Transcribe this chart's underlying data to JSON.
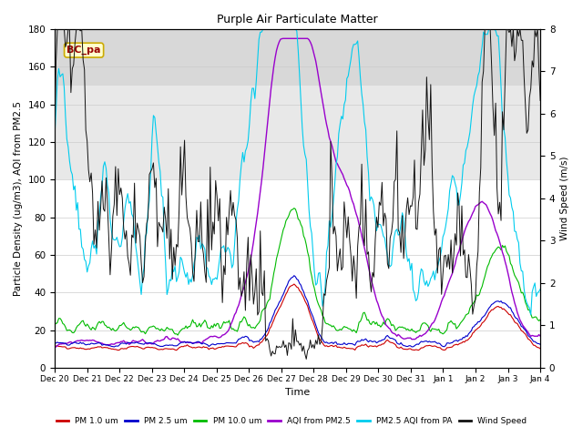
{
  "title": "Purple Air Particulate Matter",
  "xlabel": "Time",
  "ylabel_left": "Particle Density (ug/m3), AQI from PM2.5",
  "ylabel_right": "Wind Speed (m/s)",
  "annotation": "BC_pa",
  "ylim_left": [
    0,
    180
  ],
  "ylim_right": [
    0.0,
    8.0
  ],
  "yticks_left": [
    0,
    20,
    40,
    60,
    80,
    100,
    120,
    140,
    160,
    180
  ],
  "yticks_right": [
    0.0,
    1.0,
    2.0,
    3.0,
    4.0,
    5.0,
    6.0,
    7.0,
    8.0
  ],
  "xtick_labels": [
    "Dec 20",
    "Dec 21",
    "Dec 22",
    "Dec 23",
    "Dec 24",
    "Dec 25",
    "Dec 26",
    "Dec 27",
    "Dec 28",
    "Dec 29",
    "Dec 30",
    "Dec 31",
    "Jan 1",
    "Jan 2",
    "Jan 3",
    "Jan 4"
  ],
  "legend": [
    {
      "label": "PM 1.0 um",
      "color": "#cc0000",
      "lw": 0.8
    },
    {
      "label": "PM 2.5 um",
      "color": "#0000cc",
      "lw": 0.8
    },
    {
      "label": "PM 10.0 um",
      "color": "#00bb00",
      "lw": 0.8
    },
    {
      "label": "AQI from PM2.5",
      "color": "#9900cc",
      "lw": 1.0
    },
    {
      "label": "PM2.5 AQI from PA",
      "color": "#00ccee",
      "lw": 0.8
    },
    {
      "label": "Wind Speed",
      "color": "#111111",
      "lw": 0.7
    }
  ],
  "background_shading": [
    {
      "ymin": 100,
      "ymax": 150,
      "color": "#e8e8e8"
    },
    {
      "ymin": 150,
      "ymax": 180,
      "color": "#d8d8d8"
    }
  ],
  "grid_color": "#cccccc",
  "annotation_box_facecolor": "#ffffcc",
  "annotation_box_edgecolor": "#ccaa00",
  "annotation_text_color": "#990000",
  "fig_width": 6.4,
  "fig_height": 4.8,
  "dpi": 100
}
